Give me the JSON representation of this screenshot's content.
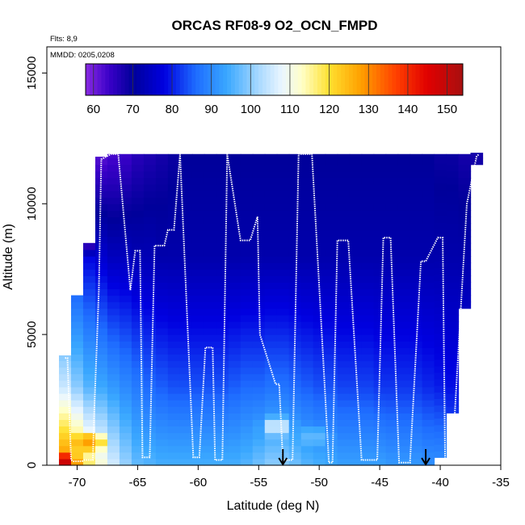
{
  "chart_data": {
    "type": "heatmap",
    "title": "ORCAS RF08-9 O2_OCN_FMPD",
    "note_flights": "Flts: 8,9",
    "note_dates": "MMDD: 0205,0208",
    "xlabel": "Latitude (deg N)",
    "ylabel": "Altitude (m)",
    "xlim": [
      -72.5,
      -35
    ],
    "ylim": [
      0,
      16000
    ],
    "x_ticks": [
      -70,
      -65,
      -60,
      -55,
      -50,
      -45,
      -40,
      -35
    ],
    "x_tick_labels": [
      "-70",
      "-65",
      "-60",
      "-55",
      "-50",
      "-45",
      "-40",
      "-35"
    ],
    "y_ticks": [
      0,
      5000,
      10000,
      15000
    ],
    "y_tick_labels": [
      "0",
      "5000",
      "10000",
      "15000"
    ],
    "colorbar": {
      "min": 58,
      "max": 154,
      "ticks": [
        60,
        70,
        80,
        90,
        100,
        110,
        120,
        130,
        140,
        150
      ],
      "tick_labels": [
        "60",
        "70",
        "80",
        "90",
        "100",
        "110",
        "120",
        "130",
        "140",
        "150"
      ],
      "color_stops": [
        {
          "value": 58,
          "color": "#8a2be2"
        },
        {
          "value": 64,
          "color": "#3a00c8"
        },
        {
          "value": 70,
          "color": "#00009a"
        },
        {
          "value": 78,
          "color": "#0000e0"
        },
        {
          "value": 86,
          "color": "#1e6cff"
        },
        {
          "value": 94,
          "color": "#3aa8ff"
        },
        {
          "value": 102,
          "color": "#a8d8ff"
        },
        {
          "value": 108,
          "color": "#eaf6ff"
        },
        {
          "value": 113,
          "color": "#ffffc8"
        },
        {
          "value": 120,
          "color": "#ffe030"
        },
        {
          "value": 128,
          "color": "#ffa000"
        },
        {
          "value": 137,
          "color": "#ff4000"
        },
        {
          "value": 145,
          "color": "#e00000"
        },
        {
          "value": 154,
          "color": "#a81010"
        }
      ]
    },
    "columns": [
      {
        "lat": -72.0,
        "top": 0,
        "bottom": 0,
        "surface": 135,
        "mid": 110,
        "upper": 80,
        "topv": 65
      },
      {
        "lat": -71.0,
        "top": 4200,
        "bottom": 0,
        "surface": 132,
        "mid": 105,
        "upper": 82,
        "topv": 70
      },
      {
        "lat": -70.0,
        "top": 6500,
        "bottom": 0,
        "surface": 126,
        "mid": 100,
        "upper": 80,
        "topv": 64
      },
      {
        "lat": -69.0,
        "top": 8500,
        "bottom": 0,
        "surface": 118,
        "mid": 96,
        "upper": 78,
        "topv": 62
      },
      {
        "lat": -68.0,
        "top": 11800,
        "bottom": 0,
        "surface": 112,
        "mid": 94,
        "upper": 76,
        "topv": 62
      },
      {
        "lat": -67.0,
        "top": 11900,
        "bottom": 0,
        "surface": 106,
        "mid": 92,
        "upper": 74,
        "topv": 63
      },
      {
        "lat": -66.0,
        "top": 11900,
        "bottom": 0,
        "surface": 101,
        "mid": 90,
        "upper": 74,
        "topv": 64
      },
      {
        "lat": -65.0,
        "top": 11900,
        "bottom": 0,
        "surface": 97,
        "mid": 88,
        "upper": 73,
        "topv": 66
      },
      {
        "lat": -64.0,
        "top": 11900,
        "bottom": 0,
        "surface": 96,
        "mid": 86,
        "upper": 73,
        "topv": 67
      },
      {
        "lat": -63.0,
        "top": 11900,
        "bottom": 0,
        "surface": 95,
        "mid": 85,
        "upper": 72,
        "topv": 68
      },
      {
        "lat": -62.0,
        "top": 11900,
        "bottom": 0,
        "surface": 95,
        "mid": 84,
        "upper": 72,
        "topv": 69
      },
      {
        "lat": -61.0,
        "top": 11900,
        "bottom": 0,
        "surface": 95,
        "mid": 84,
        "upper": 72,
        "topv": 70
      },
      {
        "lat": -60.0,
        "top": 11900,
        "bottom": 0,
        "surface": 95,
        "mid": 84,
        "upper": 72,
        "topv": 70
      },
      {
        "lat": -59.0,
        "top": 11900,
        "bottom": 0,
        "surface": 95,
        "mid": 84,
        "upper": 72,
        "topv": 70
      },
      {
        "lat": -58.0,
        "top": 11900,
        "bottom": 0,
        "surface": 95,
        "mid": 84,
        "upper": 72,
        "topv": 70
      },
      {
        "lat": -57.0,
        "top": 11900,
        "bottom": 0,
        "surface": 95,
        "mid": 85,
        "upper": 72,
        "topv": 70
      },
      {
        "lat": -56.0,
        "top": 11900,
        "bottom": 0,
        "surface": 96,
        "mid": 86,
        "upper": 72,
        "topv": 70
      },
      {
        "lat": -55.0,
        "top": 11900,
        "bottom": 0,
        "surface": 98,
        "mid": 86,
        "upper": 72,
        "topv": 70
      },
      {
        "lat": -54.0,
        "top": 11900,
        "bottom": 0,
        "surface": 100,
        "mid": 87,
        "upper": 72,
        "topv": 70
      },
      {
        "lat": -53.0,
        "top": 11900,
        "bottom": 0,
        "surface": 100,
        "mid": 87,
        "upper": 72,
        "topv": 70
      },
      {
        "lat": -52.0,
        "top": 11900,
        "bottom": 0,
        "surface": 98,
        "mid": 86,
        "upper": 72,
        "topv": 70
      },
      {
        "lat": -51.0,
        "top": 11900,
        "bottom": 0,
        "surface": 96,
        "mid": 85,
        "upper": 72,
        "topv": 70
      },
      {
        "lat": -50.0,
        "top": 11900,
        "bottom": 0,
        "surface": 95,
        "mid": 84,
        "upper": 72,
        "topv": 70
      },
      {
        "lat": -49.0,
        "top": 11900,
        "bottom": 0,
        "surface": 94,
        "mid": 84,
        "upper": 72,
        "topv": 70
      },
      {
        "lat": -48.0,
        "top": 11900,
        "bottom": 0,
        "surface": 93,
        "mid": 83,
        "upper": 72,
        "topv": 70
      },
      {
        "lat": -47.0,
        "top": 11900,
        "bottom": 0,
        "surface": 93,
        "mid": 83,
        "upper": 72,
        "topv": 70
      },
      {
        "lat": -46.0,
        "top": 11900,
        "bottom": 0,
        "surface": 93,
        "mid": 83,
        "upper": 72,
        "topv": 70
      },
      {
        "lat": -45.0,
        "top": 11900,
        "bottom": 0,
        "surface": 93,
        "mid": 82,
        "upper": 72,
        "topv": 70
      },
      {
        "lat": -44.0,
        "top": 11900,
        "bottom": 0,
        "surface": 92,
        "mid": 82,
        "upper": 72,
        "topv": 70
      },
      {
        "lat": -43.0,
        "top": 11900,
        "bottom": 0,
        "surface": 92,
        "mid": 82,
        "upper": 72,
        "topv": 70
      },
      {
        "lat": -42.0,
        "top": 11900,
        "bottom": 0,
        "surface": 92,
        "mid": 82,
        "upper": 72,
        "topv": 70
      },
      {
        "lat": -41.0,
        "top": 11900,
        "bottom": 0,
        "surface": 91,
        "mid": 81,
        "upper": 72,
        "topv": 70
      },
      {
        "lat": -40.0,
        "top": 11900,
        "bottom": 300,
        "surface": 91,
        "mid": 80,
        "upper": 72,
        "topv": 69
      },
      {
        "lat": -39.0,
        "top": 11900,
        "bottom": 2000,
        "surface": 88,
        "mid": 79,
        "upper": 72,
        "topv": 69
      },
      {
        "lat": -38.0,
        "top": 11900,
        "bottom": 6000,
        "surface": 84,
        "mid": 78,
        "upper": 72,
        "topv": 68
      },
      {
        "lat": -37.0,
        "top": 11950,
        "bottom": 11500,
        "surface": 78,
        "mid": 75,
        "upper": 71,
        "topv": 68
      }
    ],
    "anomalies": [
      {
        "lat": -53.5,
        "alt": 1500,
        "value": 106
      },
      {
        "lat": -50.5,
        "alt": 1100,
        "value": 97
      },
      {
        "lat": -69.0,
        "alt": 900,
        "value": 128
      },
      {
        "lat": -71.5,
        "alt": 100,
        "value": 150
      }
    ],
    "flight_track": {
      "lat": [
        -71.0,
        -70.8,
        -70.5,
        -70.3,
        -70.0,
        -69.6,
        -69.4,
        -69.0,
        -68.7,
        -68.6,
        -68.2,
        -68.0,
        -67.6,
        -67.2,
        -66.6,
        -65.6,
        -65.2,
        -64.8,
        -64.6,
        -64.0,
        -63.6,
        -62.8,
        -62.5,
        -62.0,
        -61.5,
        -60.4,
        -59.9,
        -59.4,
        -58.8,
        -58.6,
        -58.0,
        -57.6,
        -56.5,
        -55.7,
        -55.1,
        -54.9,
        -53.6,
        -53.3,
        -53.0,
        -52.2,
        -51.7,
        -50.6,
        -49.2,
        -48.9,
        -48.5,
        -47.6,
        -46.5,
        -45.6,
        -45.2,
        -44.7,
        -44.1,
        -43.4,
        -42.5,
        -41.6,
        -41.2,
        -40.2,
        -39.8,
        -39.6,
        -39.0,
        -38.8,
        -37.8,
        -37.0,
        -36.8
      ],
      "alt": [
        4100,
        4100,
        200,
        150,
        150,
        150,
        200,
        200,
        200,
        1800,
        6700,
        11700,
        11800,
        11900,
        11900,
        6700,
        8200,
        8200,
        300,
        300,
        8400,
        8400,
        9000,
        9000,
        11900,
        300,
        300,
        4500,
        4500,
        200,
        200,
        11900,
        8600,
        8600,
        9500,
        5000,
        3100,
        3100,
        200,
        200,
        11900,
        11900,
        100,
        100,
        8600,
        8600,
        200,
        200,
        200,
        8700,
        8700,
        100,
        100,
        7800,
        7800,
        8700,
        8700,
        200,
        200,
        2000,
        10000,
        11800,
        11900
      ]
    },
    "markers": [
      {
        "lat": -53.0,
        "label": "arrow"
      },
      {
        "lat": -41.2,
        "label": "arrow"
      }
    ]
  }
}
